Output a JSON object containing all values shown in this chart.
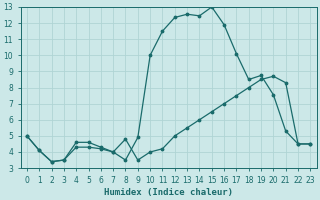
{
  "xlabel": "Humidex (Indice chaleur)",
  "bg_color": "#cce8e8",
  "grid_color": "#b0d4d4",
  "line_color": "#1a6b6b",
  "xlim": [
    -0.5,
    23.5
  ],
  "ylim": [
    3,
    13
  ],
  "xticks": [
    0,
    1,
    2,
    3,
    4,
    5,
    6,
    7,
    8,
    9,
    10,
    11,
    12,
    13,
    14,
    15,
    16,
    17,
    18,
    19,
    20,
    21,
    22,
    23
  ],
  "yticks": [
    3,
    4,
    5,
    6,
    7,
    8,
    9,
    10,
    11,
    12,
    13
  ],
  "curve1_x": [
    0,
    1,
    2,
    3,
    4,
    5,
    6,
    7,
    8,
    9,
    10,
    11,
    12,
    13,
    14,
    15,
    16,
    17,
    18,
    19,
    20,
    21,
    22,
    23
  ],
  "curve1_y": [
    5.0,
    4.1,
    3.4,
    3.5,
    4.6,
    4.6,
    4.3,
    4.0,
    3.5,
    4.9,
    10.0,
    11.5,
    12.35,
    12.55,
    12.45,
    13.0,
    11.9,
    10.1,
    8.5,
    8.75,
    7.55,
    5.3,
    4.5,
    4.5
  ],
  "curve2_x": [
    0,
    1,
    2,
    3,
    4,
    5,
    6,
    7,
    8,
    9,
    10,
    11,
    12,
    13,
    14,
    15,
    16,
    17,
    18,
    19,
    20,
    21,
    22,
    23
  ],
  "curve2_y": [
    5.0,
    4.1,
    3.4,
    3.5,
    4.3,
    4.3,
    4.2,
    4.0,
    4.8,
    3.5,
    4.0,
    4.2,
    5.0,
    5.5,
    6.0,
    6.5,
    7.0,
    7.5,
    8.0,
    8.5,
    8.7,
    8.3,
    4.5,
    4.5
  ]
}
